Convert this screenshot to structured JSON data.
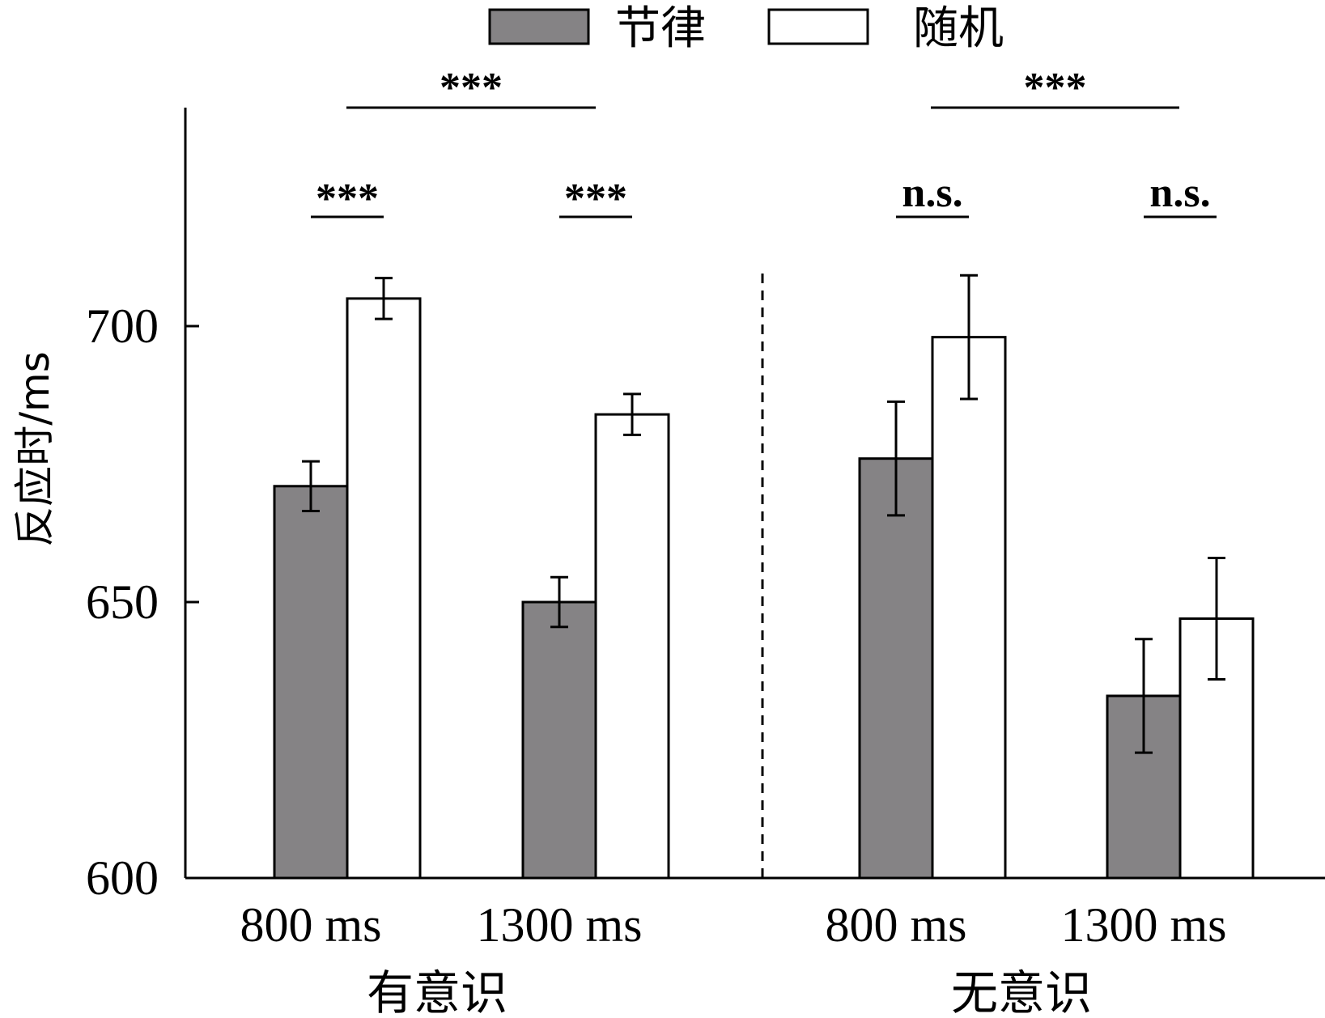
{
  "chart_data": {
    "type": "bar",
    "title": "",
    "ylabel": "反应时/ms",
    "xlabel": "",
    "ylim": [
      600,
      740
    ],
    "yticks": [
      600,
      650,
      700
    ],
    "legend": {
      "position": "top-center",
      "entries": [
        "节律",
        "随机"
      ]
    },
    "groups": [
      {
        "label": "有意识",
        "categories": [
          "800 ms",
          "1300 ms"
        ]
      },
      {
        "label": "无意识",
        "categories": [
          "800 ms",
          "1300 ms"
        ]
      }
    ],
    "categories": [
      "800 ms",
      "1300 ms",
      "800 ms",
      "1300 ms"
    ],
    "series": [
      {
        "name": "节律",
        "color": "#858385",
        "values": [
          671,
          650,
          676,
          633
        ],
        "errors": [
          4.5,
          4.5,
          10.3,
          10.3
        ]
      },
      {
        "name": "随机",
        "color": "#ffffff",
        "values": [
          705,
          684,
          698,
          647
        ],
        "errors": [
          3.7,
          3.7,
          11.2,
          11.0
        ]
      }
    ],
    "annotations": {
      "within": [
        "***",
        "***",
        "n.s.",
        "n.s."
      ],
      "between": [
        "***",
        "***"
      ]
    }
  }
}
